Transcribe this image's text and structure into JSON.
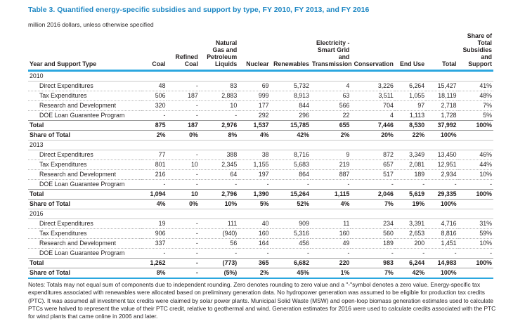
{
  "title": "Table 3. Quantified energy-specific subsidies and support by type, FY 2010, FY 2013, and FY 2016",
  "subtitle": "million 2016 dollars, unless otherwise specified",
  "colors": {
    "accent_blue": "#1e87c3",
    "rule_blue": "#2ba7df"
  },
  "table": {
    "columns": [
      "Year and Support Type",
      "Coal",
      "Refined\nCoal",
      "Natural\nGas and\nPetroleum\nLiquids",
      "Nuclear",
      "Renewables",
      "Electricity -\nSmart Grid\nand\nTransmission",
      "Conservation",
      "End Use",
      "Total",
      "Share of\nTotal\nSubsidies\nand\nSupport"
    ],
    "sections": [
      {
        "year": "2010",
        "rows": [
          {
            "label": "Direct Expenditures",
            "values": [
              "48",
              "-",
              "83",
              "69",
              "5,732",
              "4",
              "3,226",
              "6,264",
              "15,427",
              "41%"
            ]
          },
          {
            "label": "Tax Expenditures",
            "values": [
              "506",
              "187",
              "2,883",
              "999",
              "8,913",
              "63",
              "3,511",
              "1,055",
              "18,119",
              "48%"
            ]
          },
          {
            "label": "Research and Development",
            "values": [
              "320",
              "-",
              "10",
              "177",
              "844",
              "566",
              "704",
              "97",
              "2,718",
              "7%"
            ]
          },
          {
            "label": "DOE Loan Guarantee Program",
            "values": [
              "-",
              "-",
              "-",
              "292",
              "296",
              "22",
              "4",
              "1,113",
              "1,728",
              "5%"
            ]
          }
        ],
        "total": {
          "label": "Total",
          "values": [
            "875",
            "187",
            "2,976",
            "1,537",
            "15,785",
            "655",
            "7,446",
            "8,530",
            "37,992",
            "100%"
          ]
        },
        "share": {
          "label": "Share of Total",
          "values": [
            "2%",
            "0%",
            "8%",
            "4%",
            "42%",
            "2%",
            "20%",
            "22%",
            "100%",
            ""
          ]
        }
      },
      {
        "year": "2013",
        "rows": [
          {
            "label": "Direct Expenditures",
            "values": [
              "77",
              "-",
              "388",
              "38",
              "8,716",
              "9",
              "872",
              "3,349",
              "13,450",
              "46%"
            ]
          },
          {
            "label": "Tax Expenditures",
            "values": [
              "801",
              "10",
              "2,345",
              "1,155",
              "5,683",
              "219",
              "657",
              "2,081",
              "12,951",
              "44%"
            ]
          },
          {
            "label": "Research and Development",
            "values": [
              "216",
              "-",
              "64",
              "197",
              "864",
              "887",
              "517",
              "189",
              "2,934",
              "10%"
            ]
          },
          {
            "label": "DOE Loan Guarantee Program",
            "values": [
              "-",
              "-",
              "-",
              "-",
              "-",
              "-",
              "-",
              "-",
              "-",
              "-"
            ]
          }
        ],
        "total": {
          "label": "Total",
          "values": [
            "1,094",
            "10",
            "2,796",
            "1,390",
            "15,264",
            "1,115",
            "2,046",
            "5,619",
            "29,335",
            "100%"
          ]
        },
        "share": {
          "label": "Share of Total",
          "values": [
            "4%",
            "0%",
            "10%",
            "5%",
            "52%",
            "4%",
            "7%",
            "19%",
            "100%",
            ""
          ]
        }
      },
      {
        "year": "2016",
        "rows": [
          {
            "label": "Direct Expenditures",
            "values": [
              "19",
              "-",
              "111",
              "40",
              "909",
              "11",
              "234",
              "3,391",
              "4,716",
              "31%"
            ]
          },
          {
            "label": "Tax Expenditures",
            "values": [
              "906",
              "-",
              "(940)",
              "160",
              "5,316",
              "160",
              "560",
              "2,653",
              "8,816",
              "59%"
            ]
          },
          {
            "label": "Research and Development",
            "values": [
              "337",
              "-",
              "56",
              "164",
              "456",
              "49",
              "189",
              "200",
              "1,451",
              "10%"
            ]
          },
          {
            "label": "DOE Loan Guarantee Program",
            "values": [
              "-",
              "-",
              "-",
              "-",
              "-",
              "-",
              "-",
              "-",
              "-",
              "-"
            ]
          }
        ],
        "total": {
          "label": "Total",
          "values": [
            "1,262",
            "-",
            "(773)",
            "365",
            "6,682",
            "220",
            "983",
            "6,244",
            "14,983",
            "100%"
          ]
        },
        "share": {
          "label": "Share of Total",
          "values": [
            "8%",
            "-",
            "(5%)",
            "2%",
            "45%",
            "1%",
            "7%",
            "42%",
            "100%",
            ""
          ]
        }
      }
    ]
  },
  "notes": "Notes: Totals may not equal sum of components due to independent rounding. Zero denotes rounding to zero value and a \"-\"symbol denotes a zero value. Energy-specific tax expenditures associated with renewables were allocated based on preliminary generation data. No hydropower generation was assumed to be eligible for production tax credits (PTC). It was assumed all investment tax credits were claimed by solar power plants. Municipal Solid Waste (MSW) and open-loop biomass generation estimates used to calculate PTCs were halved to represent the value of their PTC credit, relative to geothermal and wind. Generation estimates for 2016 were used to calculate credits associated with the PTC for wind plants that came online in 2006 and later."
}
